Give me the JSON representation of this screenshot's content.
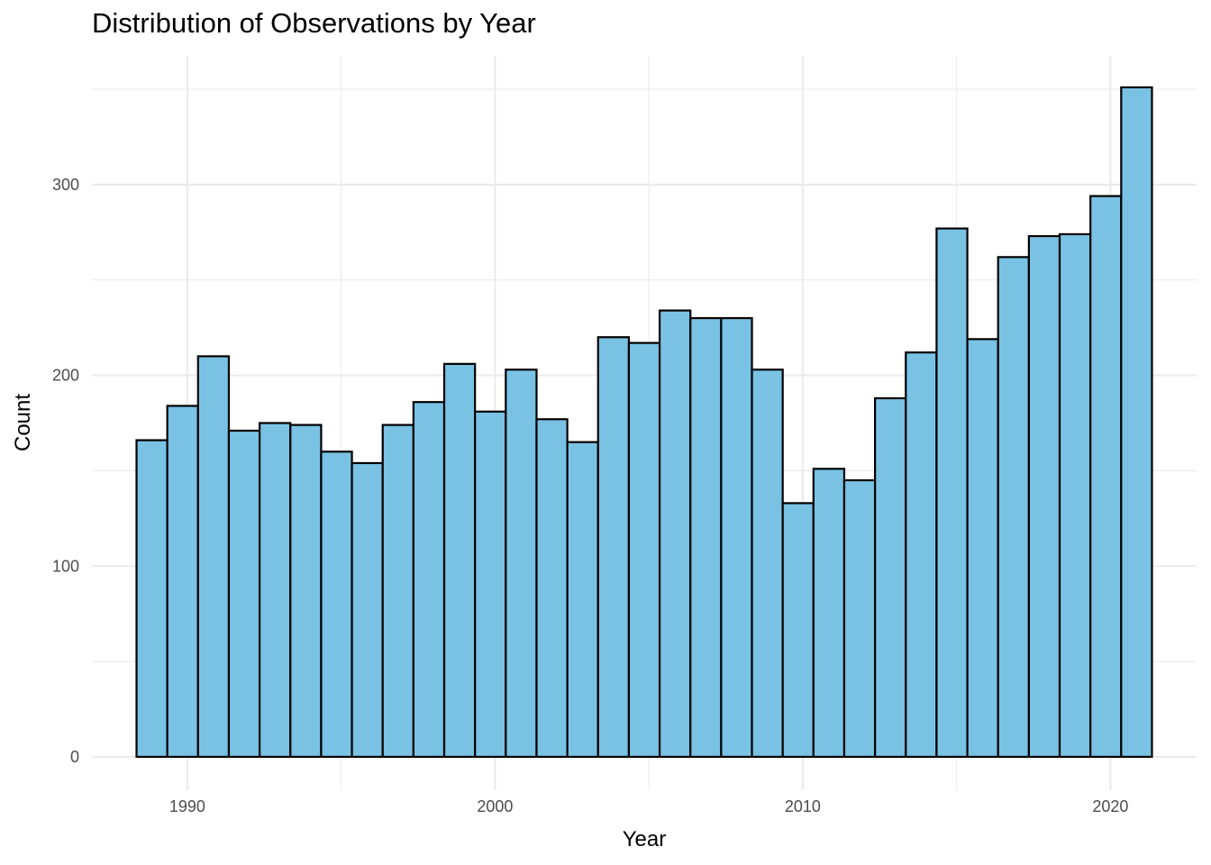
{
  "chart_data": {
    "type": "bar",
    "title": "Distribution of Observations by Year",
    "xlabel": "Year",
    "ylabel": "Count",
    "bar_color": "#79C2E4",
    "bar_edge_color": "#000000",
    "grid_color": "#EBEBEB",
    "grid": true,
    "xlim": [
      1986.9,
      2022.8
    ],
    "ylim": [
      -17.5,
      367.5
    ],
    "x_ticks": [
      1990,
      2000,
      2010,
      2020
    ],
    "x_tick_labels": [
      "1990",
      "2000",
      "2010",
      "2020"
    ],
    "x_minor_gridlines": [
      1985,
      1995,
      2005,
      2015
    ],
    "y_ticks": [
      0,
      100,
      200,
      300
    ],
    "y_tick_labels": [
      "0",
      "100",
      "200",
      "300"
    ],
    "y_minor_gridlines": [
      50,
      150,
      250,
      350
    ],
    "bin_range": [
      1988.35,
      2021.35
    ],
    "bin_width": 1.0,
    "values": [
      166,
      184,
      210,
      171,
      175,
      174,
      160,
      154,
      174,
      186,
      206,
      181,
      203,
      177,
      165,
      220,
      217,
      234,
      230,
      230,
      203,
      133,
      151,
      145,
      188,
      212,
      277,
      219,
      262,
      273,
      274,
      294,
      351
    ]
  }
}
